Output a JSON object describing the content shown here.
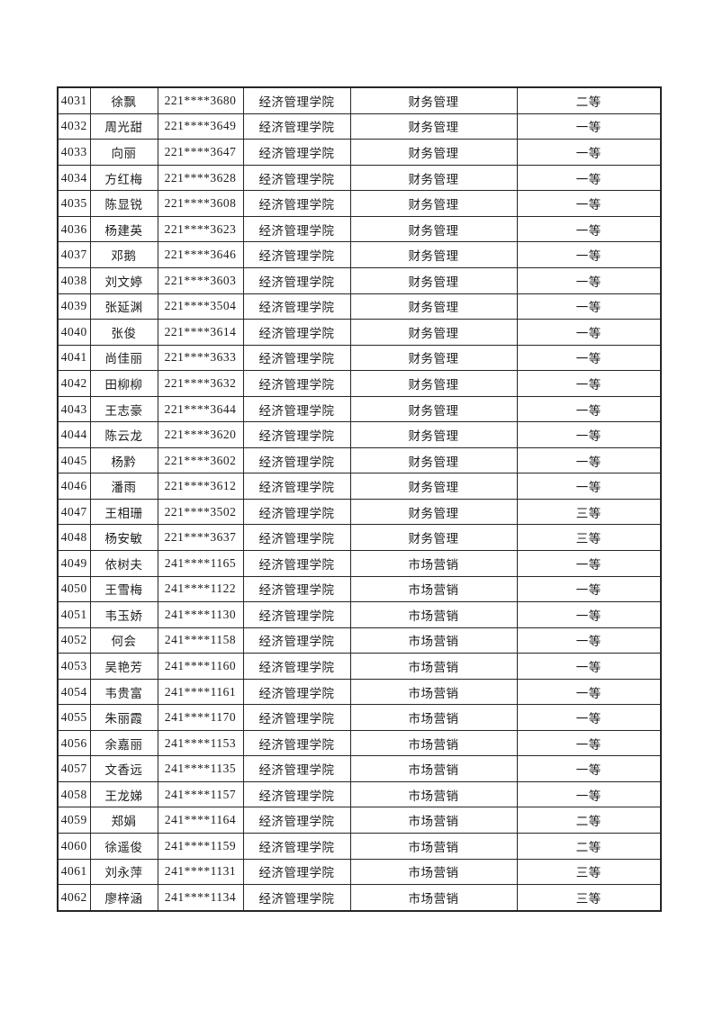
{
  "colors": {
    "page_background": "#ffffff",
    "table_border": "#262626",
    "text": "#1c1c1c"
  },
  "table": {
    "column_keys": [
      "serial",
      "name",
      "student-id",
      "college",
      "major",
      "award"
    ],
    "rows": [
      [
        "4031",
        "徐飘",
        "221****3680",
        "经济管理学院",
        "财务管理",
        "二等"
      ],
      [
        "4032",
        "周光甜",
        "221****3649",
        "经济管理学院",
        "财务管理",
        "一等"
      ],
      [
        "4033",
        "向丽",
        "221****3647",
        "经济管理学院",
        "财务管理",
        "一等"
      ],
      [
        "4034",
        "方红梅",
        "221****3628",
        "经济管理学院",
        "财务管理",
        "一等"
      ],
      [
        "4035",
        "陈显锐",
        "221****3608",
        "经济管理学院",
        "财务管理",
        "一等"
      ],
      [
        "4036",
        "杨建英",
        "221****3623",
        "经济管理学院",
        "财务管理",
        "一等"
      ],
      [
        "4037",
        "邓鹅",
        "221****3646",
        "经济管理学院",
        "财务管理",
        "一等"
      ],
      [
        "4038",
        "刘文婷",
        "221****3603",
        "经济管理学院",
        "财务管理",
        "一等"
      ],
      [
        "4039",
        "张延渊",
        "221****3504",
        "经济管理学院",
        "财务管理",
        "一等"
      ],
      [
        "4040",
        "张俊",
        "221****3614",
        "经济管理学院",
        "财务管理",
        "一等"
      ],
      [
        "4041",
        "尚佳丽",
        "221****3633",
        "经济管理学院",
        "财务管理",
        "一等"
      ],
      [
        "4042",
        "田柳柳",
        "221****3632",
        "经济管理学院",
        "财务管理",
        "一等"
      ],
      [
        "4043",
        "王志豪",
        "221****3644",
        "经济管理学院",
        "财务管理",
        "一等"
      ],
      [
        "4044",
        "陈云龙",
        "221****3620",
        "经济管理学院",
        "财务管理",
        "一等"
      ],
      [
        "4045",
        "杨黔",
        "221****3602",
        "经济管理学院",
        "财务管理",
        "一等"
      ],
      [
        "4046",
        "潘雨",
        "221****3612",
        "经济管理学院",
        "财务管理",
        "一等"
      ],
      [
        "4047",
        "王相珊",
        "221****3502",
        "经济管理学院",
        "财务管理",
        "三等"
      ],
      [
        "4048",
        "杨安敏",
        "221****3637",
        "经济管理学院",
        "财务管理",
        "三等"
      ],
      [
        "4049",
        "依树夫",
        "241****1165",
        "经济管理学院",
        "市场营销",
        "一等"
      ],
      [
        "4050",
        "王雪梅",
        "241****1122",
        "经济管理学院",
        "市场营销",
        "一等"
      ],
      [
        "4051",
        "韦玉娇",
        "241****1130",
        "经济管理学院",
        "市场营销",
        "一等"
      ],
      [
        "4052",
        "何会",
        "241****1158",
        "经济管理学院",
        "市场营销",
        "一等"
      ],
      [
        "4053",
        "吴艳芳",
        "241****1160",
        "经济管理学院",
        "市场营销",
        "一等"
      ],
      [
        "4054",
        "韦贵富",
        "241****1161",
        "经济管理学院",
        "市场营销",
        "一等"
      ],
      [
        "4055",
        "朱丽霞",
        "241****1170",
        "经济管理学院",
        "市场营销",
        "一等"
      ],
      [
        "4056",
        "余嘉丽",
        "241****1153",
        "经济管理学院",
        "市场营销",
        "一等"
      ],
      [
        "4057",
        "文香远",
        "241****1135",
        "经济管理学院",
        "市场营销",
        "一等"
      ],
      [
        "4058",
        "王龙娣",
        "241****1157",
        "经济管理学院",
        "市场营销",
        "一等"
      ],
      [
        "4059",
        "郑娟",
        "241****1164",
        "经济管理学院",
        "市场营销",
        "二等"
      ],
      [
        "4060",
        "徐遥俊",
        "241****1159",
        "经济管理学院",
        "市场营销",
        "二等"
      ],
      [
        "4061",
        "刘永萍",
        "241****1131",
        "经济管理学院",
        "市场营销",
        "三等"
      ],
      [
        "4062",
        "廖梓涵",
        "241****1134",
        "经济管理学院",
        "市场营销",
        "三等"
      ]
    ]
  }
}
